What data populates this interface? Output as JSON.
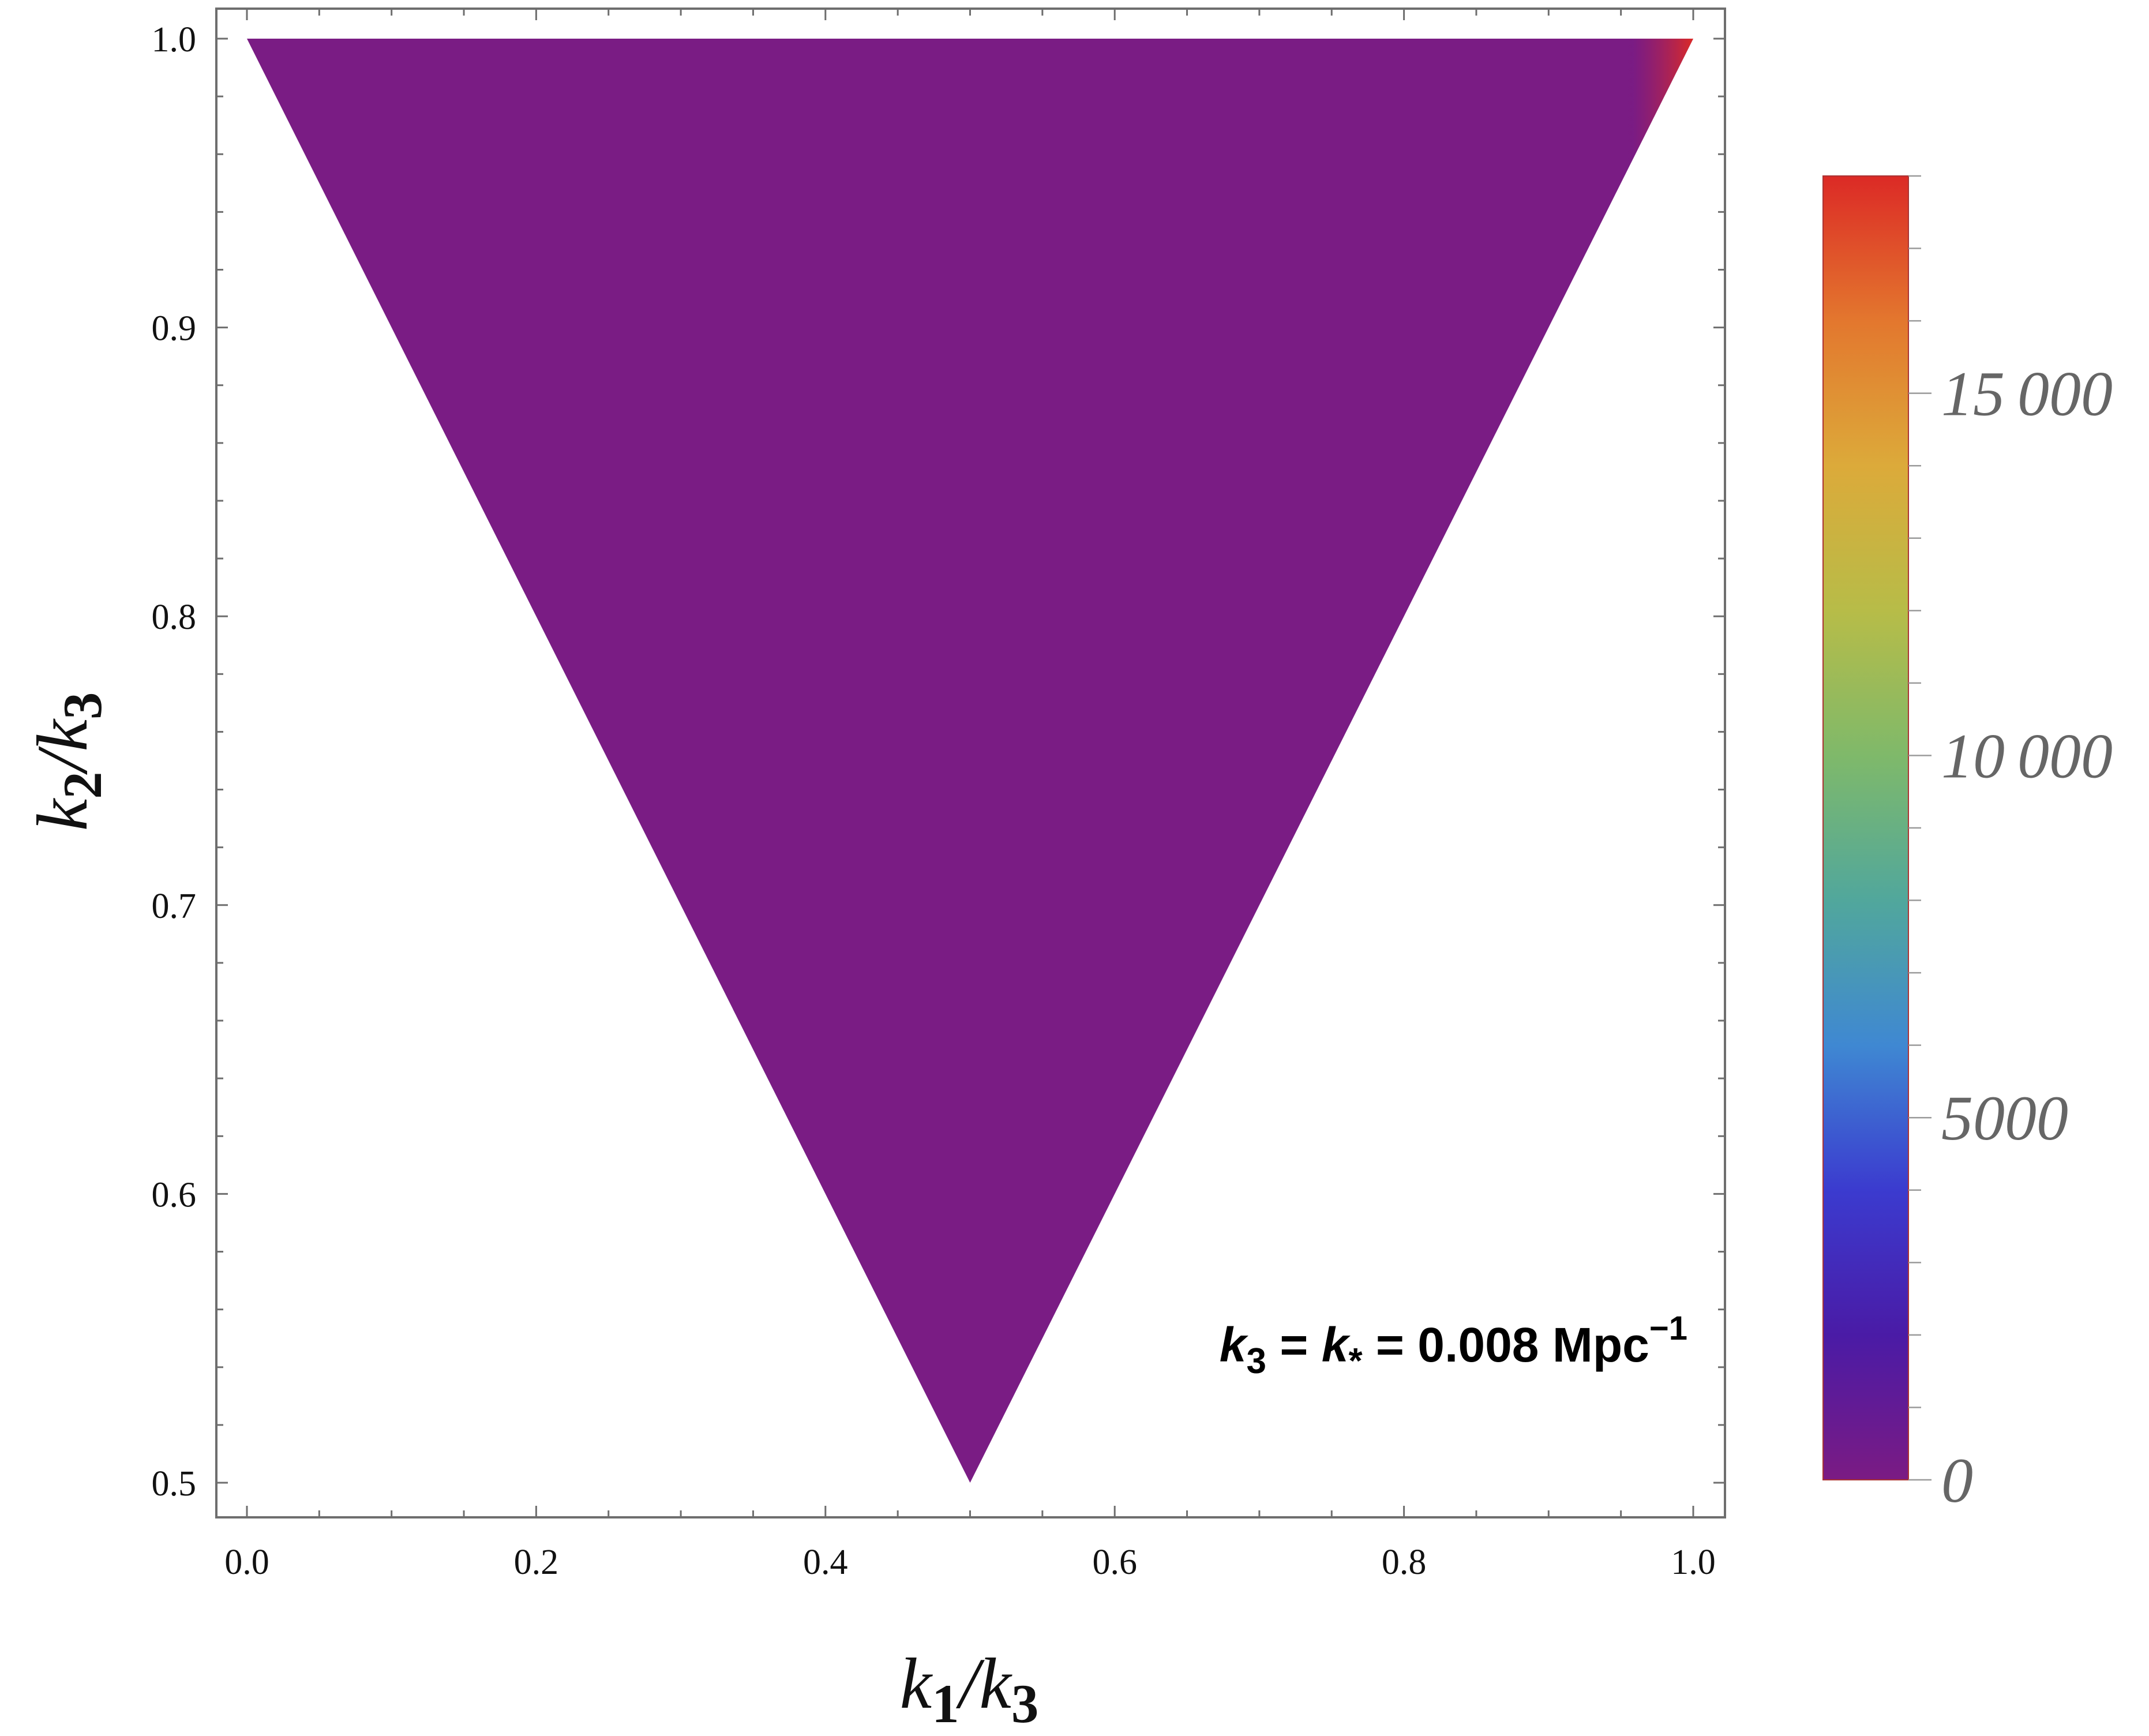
{
  "chart_data": {
    "type": "heatmap",
    "xlabel": {
      "base": "k",
      "sub": "1",
      "slash": "/",
      "base2": "k",
      "sub2": "3"
    },
    "ylabel": {
      "base": "k",
      "sub": "2",
      "slash": "/",
      "base2": "k",
      "sub2": "3"
    },
    "xlim": [
      0.0,
      1.0
    ],
    "ylim": [
      0.5,
      1.0
    ],
    "x_ticks": [
      "0.0",
      "0.2",
      "0.4",
      "0.6",
      "0.8",
      "1.0"
    ],
    "y_ticks": [
      "0.5",
      "0.6",
      "0.7",
      "0.8",
      "0.9",
      "1.0"
    ],
    "x_tick_values": [
      0.0,
      0.2,
      0.4,
      0.6,
      0.8,
      1.0
    ],
    "y_tick_values": [
      0.5,
      0.6,
      0.7,
      0.8,
      0.9,
      1.0
    ],
    "region_vertices": [
      [
        0.0,
        1.0
      ],
      [
        1.0,
        1.0
      ],
      [
        0.5,
        0.5
      ]
    ],
    "base_value": 0,
    "peak": {
      "x": 1.0,
      "y": 1.0,
      "value": 18000
    },
    "colorbar": {
      "min": 0,
      "max": 18000,
      "ticks": [
        0,
        5000,
        10000,
        15000
      ],
      "tick_labels": [
        "0",
        "5000",
        "10 000",
        "15 000"
      ],
      "colors": [
        "#7b1b83",
        "#4a1ba6",
        "#3b3bcf",
        "#3f88d2",
        "#51a79c",
        "#7fb96a",
        "#b7bc48",
        "#dcaa3a",
        "#e3772e",
        "#dc2a26"
      ]
    },
    "annotation": {
      "k3": "k",
      "k3_sub": "3",
      "eq1": " = ",
      "kstar": "k",
      "kstar_sub": "*",
      "eq2": " = 0.008 Mpc",
      "exp": "−1"
    }
  }
}
